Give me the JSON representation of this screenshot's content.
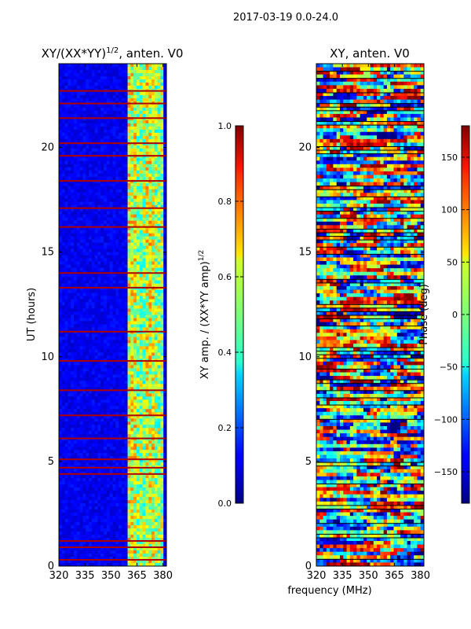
{
  "page_title": "2017-03-19 0.0-24.0",
  "chart_data": [
    {
      "type": "heatmap",
      "title_prefix": "XY/(XX*YY)",
      "title_exponent": "1/2",
      "title_suffix": ", anten. V0",
      "xlabel": "frequency (MHz)",
      "ylabel": "UT (hours)",
      "xlim": [
        320,
        382
      ],
      "ylim": [
        0,
        24
      ],
      "xticks": [
        320,
        335,
        350,
        365,
        380
      ],
      "yticks": [
        0,
        5,
        10,
        15,
        20
      ],
      "colorbar": {
        "label_main": "XY amp. / (XX*YY amp)",
        "label_exponent": "1/2",
        "range": [
          0.0,
          1.0
        ],
        "ticks": [
          "0.0",
          "0.2",
          "0.4",
          "0.6",
          "0.8",
          "1.0"
        ],
        "colormap": "jet"
      },
      "features": {
        "high_amplitude_band_mhz": [
          359,
          380
        ],
        "flagged_rows_hours": [
          0.3,
          0.9,
          1.2,
          4.4,
          4.7,
          5.1,
          6.1,
          7.2,
          8.4,
          9.8,
          11.2,
          13.3,
          14.0,
          16.2,
          17.1,
          18.4,
          19.6,
          20.2,
          21.4,
          22.1,
          22.7
        ]
      }
    },
    {
      "type": "heatmap",
      "title": "XY, anten. V0",
      "xlabel": "frequency (MHz)",
      "xlim": [
        320,
        382
      ],
      "ylim": [
        0,
        24
      ],
      "xticks": [
        320,
        335,
        350,
        365,
        380
      ],
      "yticks": [
        0,
        5,
        10,
        15,
        20
      ],
      "colorbar": {
        "label": "Phase (deg)",
        "range": [
          -180,
          180
        ],
        "ticks": [
          "−150",
          "−100",
          "−50",
          "0",
          "50",
          "100",
          "150"
        ],
        "colormap": "jet"
      }
    }
  ]
}
